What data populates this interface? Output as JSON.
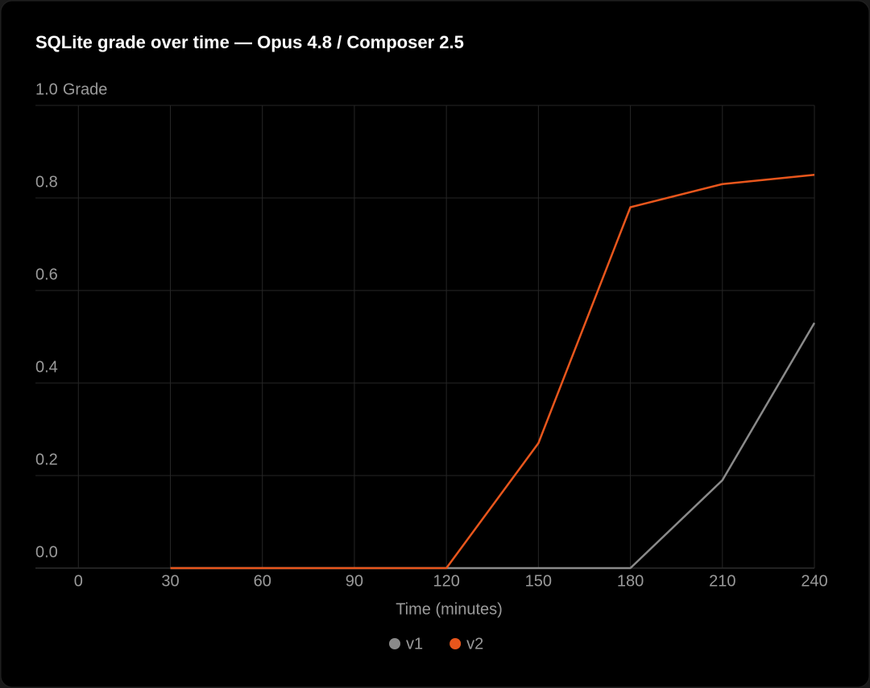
{
  "chart_data": {
    "type": "line",
    "title": "SQLite grade over time — Opus 4.8 / Composer 2.5",
    "x_label": "Time (minutes)",
    "y_label": "Grade",
    "x": [
      30,
      60,
      90,
      120,
      150,
      180,
      210,
      240
    ],
    "series": [
      {
        "name": "v1",
        "color": "#8a8a8a",
        "values": [
          0,
          0,
          0,
          0,
          0,
          0,
          0.19,
          0.53
        ]
      },
      {
        "name": "v2",
        "color": "#e8561c",
        "values": [
          0,
          0,
          0,
          0,
          0.27,
          0.78,
          0.83,
          0.85
        ]
      }
    ],
    "xlim": [
      -14,
      240
    ],
    "xticks": [
      0,
      30,
      60,
      90,
      120,
      150,
      180,
      210,
      240
    ],
    "ylim": [
      0,
      1
    ],
    "yticks": [
      {
        "value": 0,
        "label": "0.0"
      },
      0.2,
      0.4,
      0.6,
      0.8,
      {
        "value": 1,
        "label": "1.0"
      }
    ],
    "grid": true,
    "legend": "bottom"
  }
}
